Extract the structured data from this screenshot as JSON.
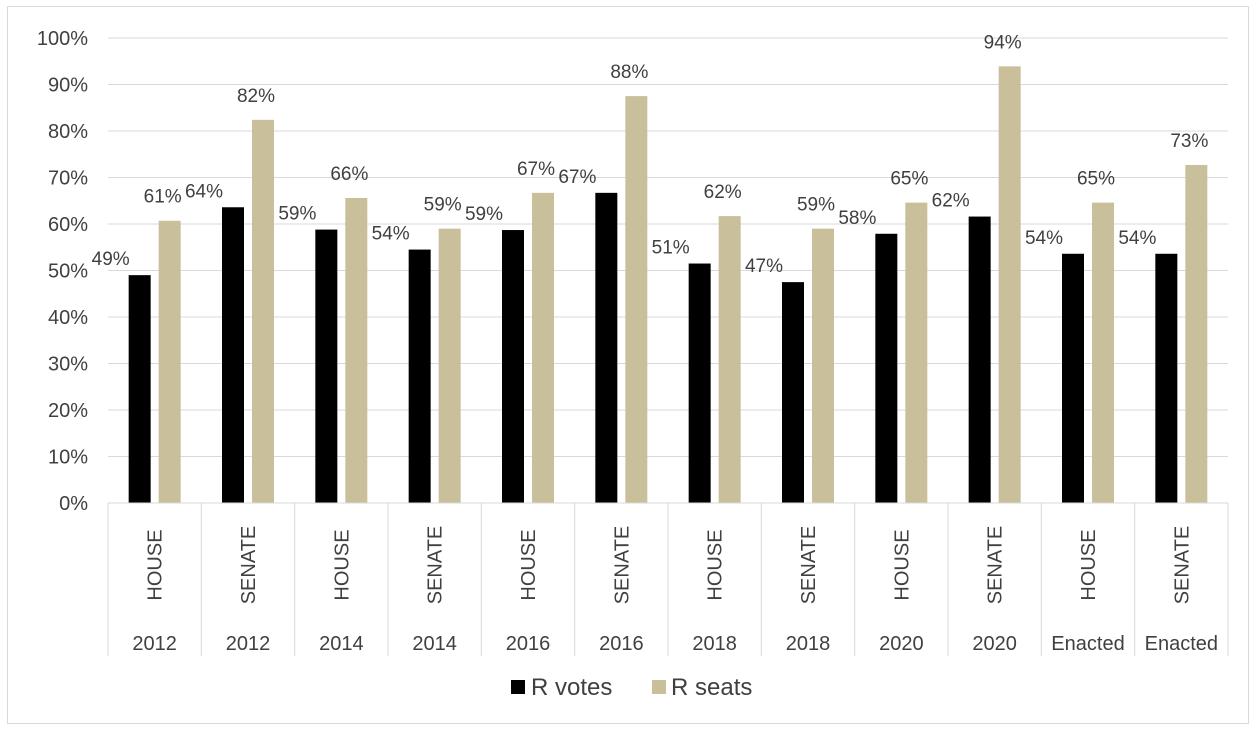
{
  "chart_data": {
    "type": "bar",
    "categories": [
      {
        "chamber": "HOUSE",
        "year": "2012"
      },
      {
        "chamber": "SENATE",
        "year": "2012"
      },
      {
        "chamber": "HOUSE",
        "year": "2014"
      },
      {
        "chamber": "SENATE",
        "year": "2014"
      },
      {
        "chamber": "HOUSE",
        "year": "2016"
      },
      {
        "chamber": "SENATE",
        "year": "2016"
      },
      {
        "chamber": "HOUSE",
        "year": "2018"
      },
      {
        "chamber": "SENATE",
        "year": "2018"
      },
      {
        "chamber": "HOUSE",
        "year": "2020"
      },
      {
        "chamber": "SENATE",
        "year": "2020"
      },
      {
        "chamber": "HOUSE",
        "year": "Enacted"
      },
      {
        "chamber": "SENATE",
        "year": "Enacted"
      }
    ],
    "series": [
      {
        "name": "R votes",
        "color": "#000000",
        "values": [
          0.49,
          0.636,
          0.588,
          0.545,
          0.587,
          0.667,
          0.515,
          0.475,
          0.579,
          0.616,
          0.536,
          0.536
        ],
        "labels": [
          "49%",
          "64%",
          "59%",
          "54%",
          "59%",
          "67%",
          "51%",
          "47%",
          "58%",
          "62%",
          "54%",
          "54%"
        ]
      },
      {
        "name": "R seats",
        "color": "#c9bf9b",
        "values": [
          0.607,
          0.824,
          0.656,
          0.59,
          0.667,
          0.875,
          0.617,
          0.59,
          0.646,
          0.939,
          0.646,
          0.727
        ],
        "labels": [
          "61%",
          "82%",
          "66%",
          "59%",
          "67%",
          "88%",
          "62%",
          "59%",
          "65%",
          "94%",
          "65%",
          "73%"
        ]
      }
    ],
    "ylim": [
      0,
      1
    ],
    "y_ticks": [
      "0%",
      "10%",
      "20%",
      "30%",
      "40%",
      "50%",
      "60%",
      "70%",
      "80%",
      "90%",
      "100%"
    ],
    "grid": true,
    "legend_position": "bottom",
    "title": "",
    "xlabel": "",
    "ylabel": ""
  }
}
